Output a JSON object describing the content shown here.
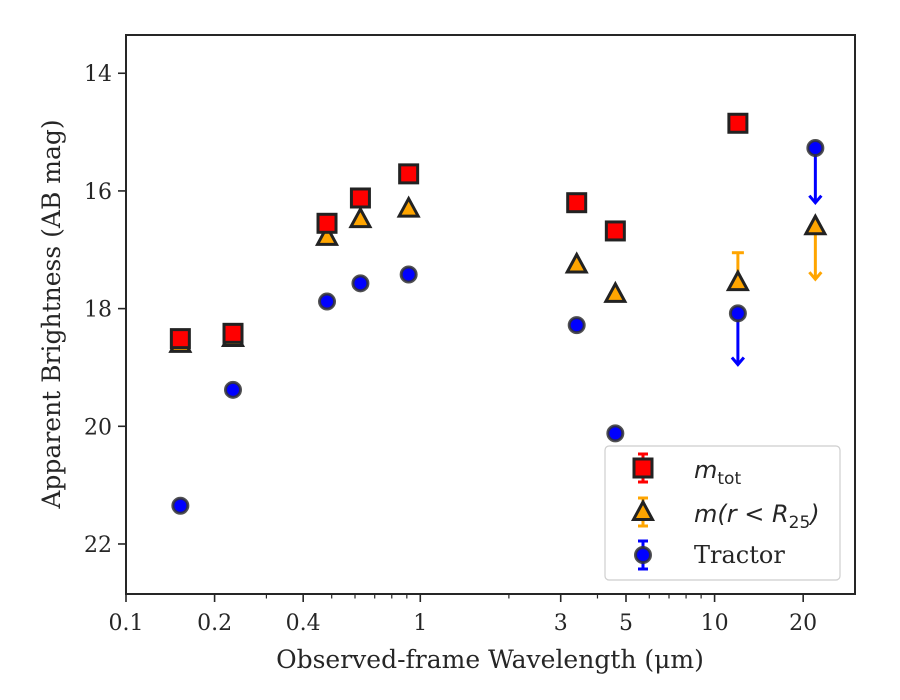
{
  "chart_data": {
    "type": "scatter",
    "xlabel": "Observed-frame Wavelength (μm)",
    "ylabel": "Apparent Brightness (AB mag)",
    "x_scale": "log",
    "xlim": [
      0.1,
      30
    ],
    "ylim": [
      22.85,
      13.35
    ],
    "y_inverted": true,
    "x_ticks": [
      0.1,
      0.2,
      0.4,
      1,
      3,
      5,
      10,
      20
    ],
    "x_tick_labels": [
      "0.1",
      "0.2",
      "0.4",
      "1",
      "3",
      "5",
      "10",
      "20"
    ],
    "y_ticks": [
      14,
      16,
      18,
      20,
      22
    ],
    "y_tick_labels": [
      "14",
      "16",
      "18",
      "20",
      "22"
    ],
    "grid": false,
    "legend_position": "bottom-right",
    "series": [
      {
        "name": "m_tot",
        "legend_main": "m",
        "legend_sub": "tot",
        "marker": "square",
        "color": "#ff0000",
        "edge_color": "#222222",
        "points": [
          {
            "x": 0.153,
            "y": 18.51
          },
          {
            "x": 0.231,
            "y": 18.42
          },
          {
            "x": 0.482,
            "y": 16.55
          },
          {
            "x": 0.626,
            "y": 16.12
          },
          {
            "x": 0.913,
            "y": 15.71
          },
          {
            "x": 3.4,
            "y": 16.2
          },
          {
            "x": 4.6,
            "y": 16.68
          },
          {
            "x": 12.0,
            "y": 14.85
          }
        ]
      },
      {
        "name": "m(r<R25)",
        "legend_main": "m(r < R",
        "legend_sub": "25",
        "legend_tail": ")",
        "marker": "triangle",
        "color": "#ffa500",
        "edge_color": "#222222",
        "points": [
          {
            "x": 0.153,
            "y": 18.6
          },
          {
            "x": 0.231,
            "y": 18.5
          },
          {
            "x": 0.482,
            "y": 16.78
          },
          {
            "x": 0.626,
            "y": 16.48
          },
          {
            "x": 0.913,
            "y": 16.3
          },
          {
            "x": 3.4,
            "y": 17.25
          },
          {
            "x": 4.6,
            "y": 17.75
          },
          {
            "x": 12.0,
            "y": 17.55,
            "err_low": 17.05
          },
          {
            "x": 22.0,
            "y": 16.6,
            "upper_limit_to": 17.5
          }
        ]
      },
      {
        "name": "Tractor",
        "legend_main": "Tractor",
        "marker": "circle",
        "color": "#0000ff",
        "edge_color": "#333333",
        "points": [
          {
            "x": 0.153,
            "y": 21.35
          },
          {
            "x": 0.231,
            "y": 19.38
          },
          {
            "x": 0.482,
            "y": 17.88
          },
          {
            "x": 0.626,
            "y": 17.57
          },
          {
            "x": 0.913,
            "y": 17.42
          },
          {
            "x": 3.4,
            "y": 18.28
          },
          {
            "x": 4.6,
            "y": 20.12
          },
          {
            "x": 12.0,
            "y": 18.08,
            "upper_limit_to": 18.95
          },
          {
            "x": 22.0,
            "y": 15.27,
            "upper_limit_to": 16.2
          }
        ]
      }
    ]
  }
}
